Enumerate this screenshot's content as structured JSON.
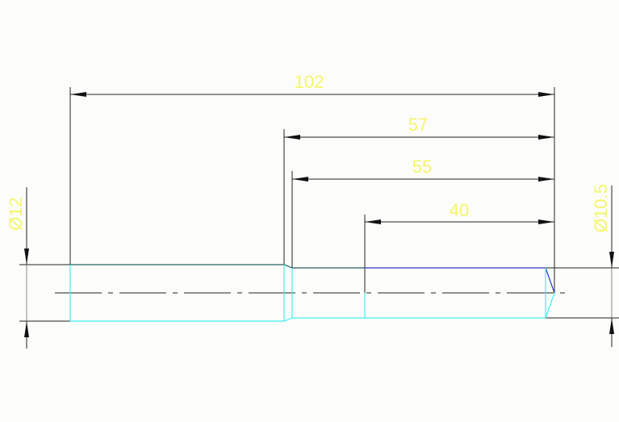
{
  "dimensions": {
    "overall_length": "102",
    "length_57": "57",
    "length_55": "55",
    "length_40": "40",
    "diameter_left": "Ø12",
    "diameter_right": "Ø10.5"
  },
  "colors": {
    "background": "#fcfdfa",
    "dimension_text": "#f5f56a",
    "dimension_line": "#222222",
    "part_outline_cyan": "#40f0f0",
    "part_outline_blue": "#3030d0",
    "part_outline_dark": "#2a6060"
  }
}
